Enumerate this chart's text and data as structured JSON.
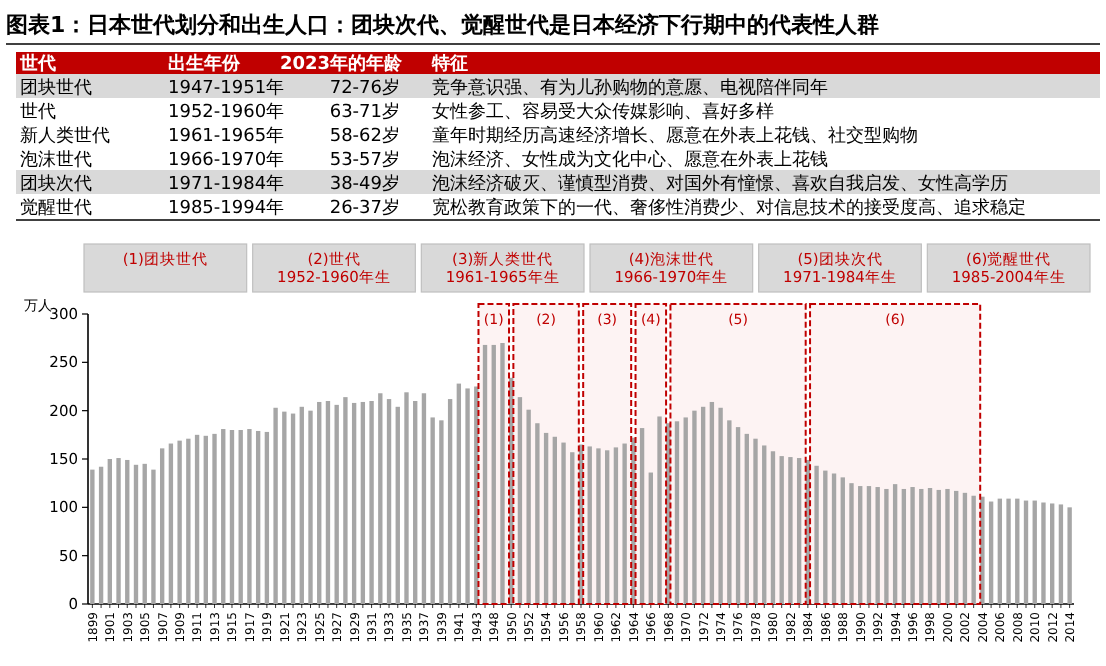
{
  "chart_data": [
    {
      "type": "other",
      "title": "图表1：日本世代划分和出生人口：团块次代、觉醒世代是日本经济下行期中的代表性人群",
      "annotations": [
        "世代",
        "出生年份",
        "2023年的年龄",
        "特征",
        "团块世代",
        "1947-1951年",
        "72-76岁",
        "竞争意识强、有为儿孙购物的意愿、电视陪伴同年",
        "世代",
        "1952-1960年",
        "63-71岁",
        "女性参工、容易受大众传媒影响、喜好多样",
        "新人类世代",
        "1961-1965年",
        "58-62岁",
        "童年时期经历高速经济增长、愿意在外表上花钱、社交型购物",
        "泡沫世代",
        "1966-1970年",
        "53-57岁",
        "泡沫经济、女性成为文化中心、愿意在外表上花钱",
        "团块次代",
        "1971-1984年",
        "38-49岁",
        "泡沫经济破灭、谨慎型消费、对国外有憧憬、喜欢自我启发、女性高学历",
        "觉醒世代",
        "1985-1994年",
        "26-37岁",
        "宽松教育政策下的一代、奢侈性消费少、对信息技术的接受度高、追求稳定"
      ]
    },
    {
      "type": "bar",
      "ylabel": "万人",
      "color": "#a6a6a6",
      "ylim": [
        0,
        300
      ],
      "yticks": [
        0,
        50,
        100,
        150,
        200,
        250,
        300
      ],
      "grid": false,
      "categories": [
        "1899",
        null,
        "1901",
        null,
        "1903",
        null,
        "1905",
        null,
        "1907",
        null,
        "1909",
        null,
        "1911",
        null,
        "1913",
        null,
        "1915",
        null,
        "1917",
        null,
        "1919",
        null,
        "1921",
        null,
        "1923",
        null,
        "1925",
        null,
        "1927",
        null,
        "1929",
        null,
        "1931",
        null,
        "1933",
        null,
        "1935",
        null,
        "1937",
        null,
        "1939",
        null,
        "1941",
        null,
        "1943",
        null,
        "1948",
        null,
        "1950",
        null,
        "1952",
        null,
        "1954",
        null,
        "1956",
        null,
        "1958",
        null,
        "1960",
        null,
        "1962",
        null,
        "1964",
        null,
        "1966",
        null,
        "1968",
        null,
        "1970",
        null,
        "1972",
        null,
        "1974",
        null,
        "1976",
        null,
        "1978",
        null,
        "1980",
        null,
        "1982",
        null,
        "1984",
        null,
        "1986",
        null,
        "1988",
        null,
        "1990",
        null,
        "1992",
        null,
        "1994",
        null,
        "1996",
        null,
        "1998",
        null,
        "2000",
        null,
        "2002",
        null,
        "2004",
        null,
        "2006",
        null,
        "2008",
        null,
        "2010",
        null,
        "2012",
        null,
        "2014"
      ],
      "values": [
        139,
        142,
        150,
        151,
        149,
        144,
        145,
        139,
        161,
        166,
        169,
        171,
        175,
        174,
        176,
        181,
        180,
        180,
        181,
        179,
        178,
        203,
        199,
        197,
        204,
        200,
        209,
        210,
        206,
        214,
        208,
        209,
        210,
        218,
        212,
        204,
        219,
        210,
        218,
        193,
        190,
        212,
        228,
        223,
        225,
        268,
        268,
        270,
        234,
        214,
        201,
        187,
        177,
        173,
        167,
        157,
        165,
        163,
        161,
        159,
        162,
        166,
        172,
        182,
        136,
        194,
        187,
        189,
        193,
        200,
        204,
        209,
        203,
        190,
        183,
        176,
        171,
        164,
        158,
        153,
        152,
        151,
        149,
        143,
        138,
        135,
        131,
        125,
        122,
        122,
        121,
        119,
        124,
        119,
        121,
        119,
        120,
        118,
        119,
        117,
        115,
        112,
        111,
        106,
        109,
        109,
        109,
        107,
        107,
        105,
        104,
        103,
        100
      ],
      "bands": [
        {
          "axis": "x",
          "from": "1943",
          "to": "1950",
          "label": "(1)"
        },
        {
          "axis": "x",
          "from": "1950",
          "to": "1958",
          "label": "(2)"
        },
        {
          "axis": "x",
          "from": "1958",
          "to": "1964",
          "label": "(3)"
        },
        {
          "axis": "x",
          "from": "1964",
          "to": "1968",
          "label": "(4)"
        },
        {
          "axis": "x",
          "from": "1968",
          "to": "1984",
          "label": "(5)"
        },
        {
          "axis": "x",
          "from": "1984",
          "to": "2004",
          "label": "(6)"
        }
      ],
      "annotations": [
        "(1)团块世代",
        "(2)世代\n1952-1960年生",
        "(3)新人类世代\n1961-1965年生",
        "(4)泡沫世代\n1966-1970年生",
        "(5)团块次代\n1971-1984年生",
        "(6)觉醒世代\n1985-2004年生"
      ]
    }
  ]
}
